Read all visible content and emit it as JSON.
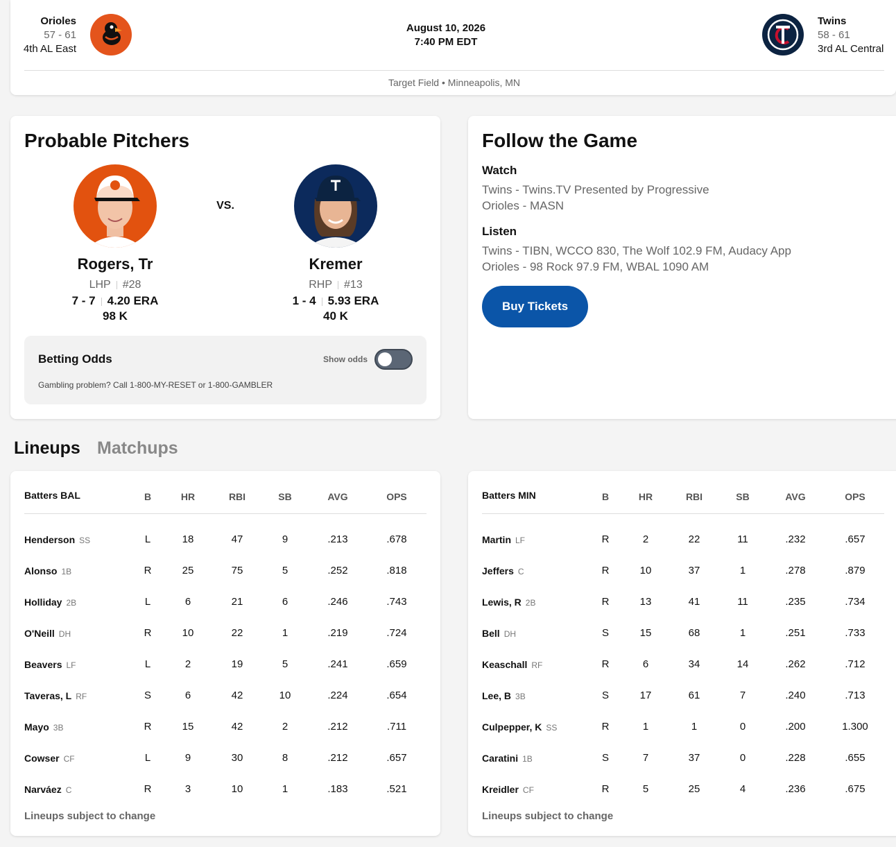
{
  "header": {
    "away": {
      "name": "Orioles",
      "record": "57 - 61",
      "standing": "4th AL East"
    },
    "date": "August 10, 2026",
    "time": "7:40 PM EDT",
    "home": {
      "name": "Twins",
      "record": "58 - 61",
      "standing": "3rd AL Central"
    },
    "venue": "Target Field • Minneapolis, MN"
  },
  "pitchers": {
    "title": "Probable Pitchers",
    "vs": "VS.",
    "items": [
      {
        "name": "Rogers, Tr",
        "throws": "LHP",
        "number": "#28",
        "record": "7 - 7",
        "era": "4.20 ERA",
        "strikeouts": "98 K"
      },
      {
        "name": "Kremer",
        "throws": "RHP",
        "number": "#13",
        "record": "1 - 4",
        "era": "5.93 ERA",
        "strikeouts": "40 K"
      }
    ],
    "betting": {
      "title": "Betting Odds",
      "toggle_label": "Show odds",
      "disclaimer": "Gambling problem? Call 1-800-MY-RESET or 1-800-GAMBLER"
    }
  },
  "follow": {
    "title": "Follow the Game",
    "sections": [
      {
        "heading": "Watch",
        "lines": [
          "Twins - Twins.TV Presented by Progressive",
          "Orioles - MASN"
        ]
      },
      {
        "heading": "Listen",
        "lines": [
          "Twins - TIBN, WCCO 830, The Wolf 102.9 FM, Audacy App",
          "Orioles - 98 Rock 97.9 FM, WBAL 1090 AM"
        ]
      }
    ],
    "button": "Buy Tickets"
  },
  "tabs": [
    "Lineups",
    "Matchups"
  ],
  "lineups": [
    {
      "columns": [
        "Batters BAL",
        "B",
        "HR",
        "RBI",
        "SB",
        "AVG",
        "OPS"
      ],
      "rows": [
        [
          "Henderson",
          "SS",
          "L",
          18,
          47,
          9,
          ".213",
          ".678"
        ],
        [
          "Alonso",
          "1B",
          "R",
          25,
          75,
          5,
          ".252",
          ".818"
        ],
        [
          "Holliday",
          "2B",
          "L",
          6,
          21,
          6,
          ".246",
          ".743"
        ],
        [
          "O'Neill",
          "DH",
          "R",
          10,
          22,
          1,
          ".219",
          ".724"
        ],
        [
          "Beavers",
          "LF",
          "L",
          2,
          19,
          5,
          ".241",
          ".659"
        ],
        [
          "Taveras, L",
          "RF",
          "S",
          6,
          42,
          10,
          ".224",
          ".654"
        ],
        [
          "Mayo",
          "3B",
          "R",
          15,
          42,
          2,
          ".212",
          ".711"
        ],
        [
          "Cowser",
          "CF",
          "L",
          9,
          30,
          8,
          ".212",
          ".657"
        ],
        [
          "Narváez",
          "C",
          "R",
          3,
          10,
          1,
          ".183",
          ".521"
        ]
      ],
      "note": "Lineups subject to change"
    },
    {
      "columns": [
        "Batters MIN",
        "B",
        "HR",
        "RBI",
        "SB",
        "AVG",
        "OPS"
      ],
      "rows": [
        [
          "Martin",
          "LF",
          "R",
          2,
          22,
          11,
          ".232",
          ".657"
        ],
        [
          "Jeffers",
          "C",
          "R",
          10,
          37,
          1,
          ".278",
          ".879"
        ],
        [
          "Lewis, R",
          "2B",
          "R",
          13,
          41,
          11,
          ".235",
          ".734"
        ],
        [
          "Bell",
          "DH",
          "S",
          15,
          68,
          1,
          ".251",
          ".733"
        ],
        [
          "Keaschall",
          "RF",
          "R",
          6,
          34,
          14,
          ".262",
          ".712"
        ],
        [
          "Lee, B",
          "3B",
          "S",
          17,
          61,
          7,
          ".240",
          ".713"
        ],
        [
          "Culpepper, K",
          "SS",
          "R",
          1,
          1,
          0,
          ".200",
          "1.300"
        ],
        [
          "Caratini",
          "1B",
          "S",
          7,
          37,
          0,
          ".228",
          ".655"
        ],
        [
          "Kreidler",
          "CF",
          "R",
          5,
          25,
          4,
          ".236",
          ".675"
        ]
      ],
      "note": "Lineups subject to change"
    }
  ]
}
